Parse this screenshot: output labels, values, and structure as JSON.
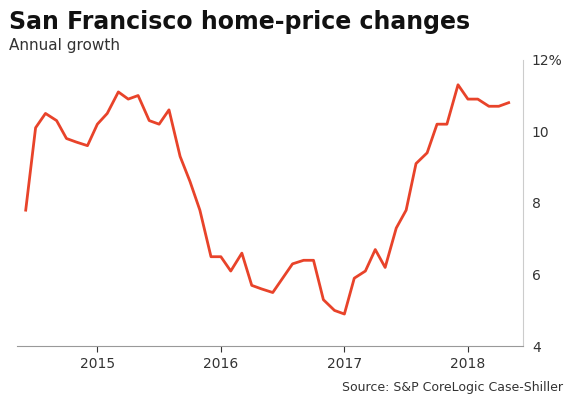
{
  "chart_data": {
    "type": "line",
    "title": "San Francisco home-price changes",
    "subtitle": "Annual growth",
    "source": "Source: S&P CoreLogic Case-Shiller",
    "x": [
      2014.42,
      2014.5,
      2014.58,
      2014.67,
      2014.75,
      2014.83,
      2014.92,
      2015.0,
      2015.08,
      2015.17,
      2015.25,
      2015.33,
      2015.42,
      2015.5,
      2015.58,
      2015.67,
      2015.75,
      2015.83,
      2015.92,
      2016.0,
      2016.08,
      2016.17,
      2016.25,
      2016.33,
      2016.42,
      2016.5,
      2016.58,
      2016.67,
      2016.75,
      2016.83,
      2016.92,
      2017.0,
      2017.08,
      2017.17,
      2017.25,
      2017.33,
      2017.42,
      2017.5,
      2017.58,
      2017.67,
      2017.75,
      2017.83,
      2017.92,
      2018.0,
      2018.08,
      2018.17,
      2018.25,
      2018.33
    ],
    "values": [
      7.8,
      10.1,
      10.5,
      10.3,
      9.8,
      9.7,
      9.6,
      10.2,
      10.5,
      11.1,
      10.9,
      11.0,
      10.3,
      10.2,
      10.6,
      9.3,
      8.6,
      7.8,
      6.5,
      6.5,
      6.1,
      6.6,
      5.7,
      5.6,
      5.5,
      5.9,
      6.3,
      6.4,
      6.4,
      5.3,
      5.0,
      4.9,
      5.9,
      6.1,
      6.7,
      6.2,
      7.3,
      7.8,
      9.1,
      9.4,
      10.2,
      10.2,
      11.3,
      10.9,
      10.9,
      10.7,
      10.7,
      10.8
    ],
    "color": "#e8432a",
    "xlim": [
      2014.35,
      2018.45
    ],
    "xticks": [
      2015,
      2016,
      2017,
      2018
    ],
    "ylim": [
      4,
      12
    ],
    "yticks": [
      4,
      6,
      8,
      10,
      {
        "value": 12,
        "label": "12%"
      }
    ],
    "grid": false
  }
}
